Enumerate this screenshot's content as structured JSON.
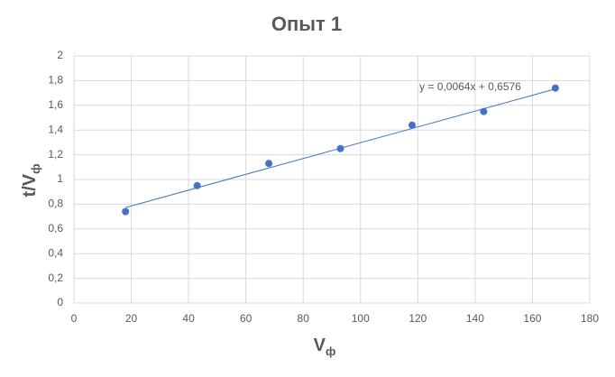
{
  "chart_data": {
    "type": "scatter",
    "title": "Опыт 1",
    "x_label": {
      "main": "V",
      "sub": "ф"
    },
    "y_label": {
      "main": "t/V",
      "sub": "ф"
    },
    "series": [
      {
        "color": "#4472c4",
        "x": [
          18,
          43,
          68,
          93,
          118,
          143,
          168
        ],
        "values": [
          0.74,
          0.95,
          1.13,
          1.25,
          1.44,
          1.55,
          1.74
        ]
      }
    ],
    "trendline": {
      "slope": 0.0064,
      "intercept": 0.6576,
      "label": "y = 0,0064x + 0,6576",
      "color": "#4472c4"
    },
    "xlim": [
      0,
      180
    ],
    "xticks": [
      0,
      20,
      40,
      60,
      80,
      100,
      120,
      140,
      160,
      180
    ],
    "ylim": [
      0,
      2
    ],
    "yticks": [
      0,
      {
        "value": 0.2,
        "label": "0,2"
      },
      {
        "value": 0.4,
        "label": "0,4"
      },
      {
        "value": 0.6,
        "label": "0,6"
      },
      {
        "value": 0.8,
        "label": "0,8"
      },
      1,
      {
        "value": 1.2,
        "label": "1,2"
      },
      {
        "value": 1.4,
        "label": "1,4"
      },
      {
        "value": 1.6,
        "label": "1,6"
      },
      {
        "value": 1.8,
        "label": "1,8"
      },
      2
    ],
    "grid": true
  }
}
